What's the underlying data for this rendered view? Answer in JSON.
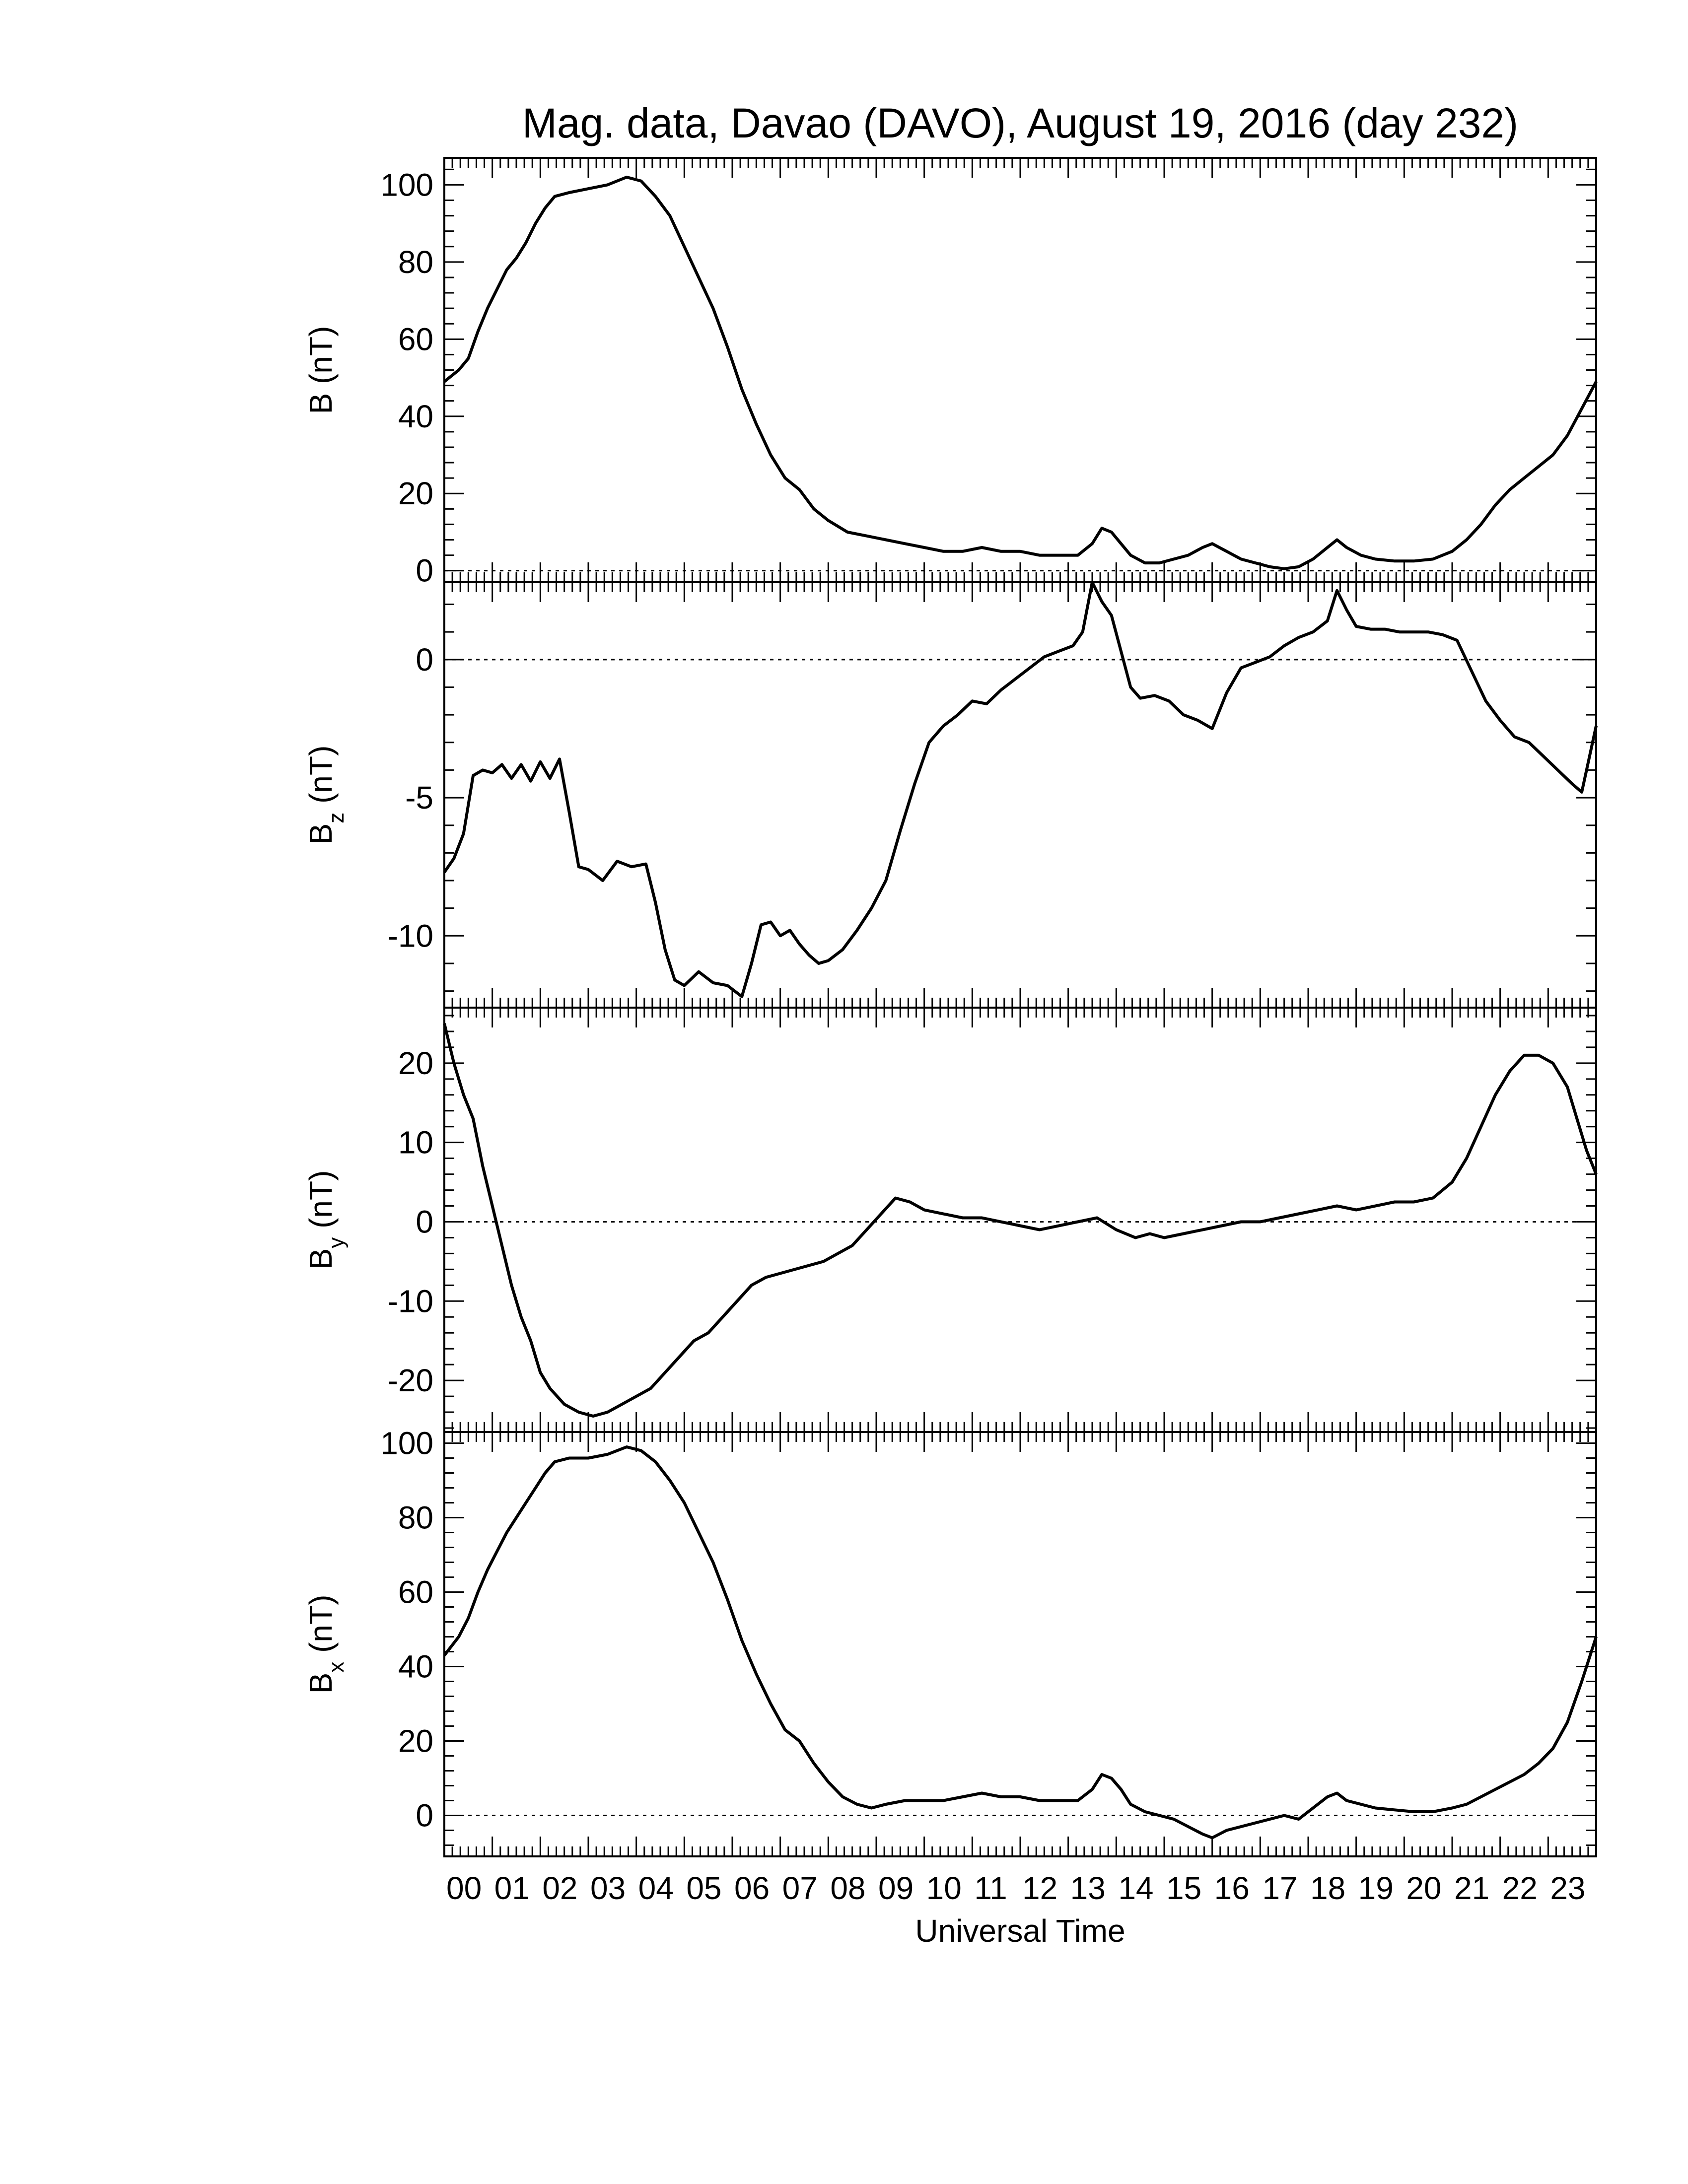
{
  "title": "Mag. data, Davao (DAVO), August 19, 2016 (day 232)",
  "xlabel": "Universal Time",
  "x_tick_labels": [
    "00",
    "01",
    "02",
    "03",
    "04",
    "05",
    "06",
    "07",
    "08",
    "09",
    "10",
    "11",
    "12",
    "13",
    "14",
    "15",
    "16",
    "17",
    "18",
    "19",
    "20",
    "21",
    "22",
    "23"
  ],
  "chart_data": [
    {
      "type": "line",
      "id": "B",
      "ylabel": "B (nT)",
      "ylabel_main": "B",
      "ylabel_sub": "",
      "ylabel_unit": " (nT)",
      "xlim": [
        0,
        24
      ],
      "ylim": [
        -3,
        107
      ],
      "yticks": [
        0,
        20,
        40,
        60,
        80,
        100
      ],
      "zero_line": true,
      "x": [
        0,
        0.3,
        0.5,
        0.7,
        0.9,
        1.1,
        1.3,
        1.5,
        1.7,
        1.9,
        2.1,
        2.3,
        2.6,
        3.0,
        3.4,
        3.8,
        4.1,
        4.4,
        4.7,
        5.0,
        5.3,
        5.6,
        5.9,
        6.2,
        6.5,
        6.8,
        7.1,
        7.4,
        7.7,
        8.0,
        8.4,
        8.8,
        9.2,
        9.6,
        10.0,
        10.4,
        10.8,
        11.2,
        11.6,
        12.0,
        12.4,
        12.8,
        13.2,
        13.5,
        13.7,
        13.9,
        14.1,
        14.3,
        14.6,
        14.9,
        15.2,
        15.5,
        15.8,
        16.0,
        16.3,
        16.6,
        16.9,
        17.2,
        17.5,
        17.8,
        18.1,
        18.4,
        18.6,
        18.8,
        19.1,
        19.4,
        19.8,
        20.2,
        20.6,
        21.0,
        21.3,
        21.6,
        21.9,
        22.2,
        22.5,
        22.8,
        23.1,
        23.4,
        23.7,
        24.0
      ],
      "y": [
        49,
        52,
        55,
        62,
        68,
        73,
        78,
        81,
        85,
        90,
        94,
        97,
        98,
        99,
        100,
        102,
        101,
        97,
        92,
        84,
        76,
        68,
        58,
        47,
        38,
        30,
        24,
        21,
        16,
        13,
        10,
        9,
        8,
        7,
        6,
        5,
        5,
        6,
        5,
        5,
        4,
        4,
        4,
        7,
        11,
        10,
        7,
        4,
        2,
        2,
        3,
        4,
        6,
        7,
        5,
        3,
        2,
        1,
        0.5,
        1,
        3,
        6,
        8,
        6,
        4,
        3,
        2.5,
        2.5,
        3,
        5,
        8,
        12,
        17,
        21,
        24,
        27,
        30,
        35,
        42,
        49
      ]
    },
    {
      "type": "line",
      "id": "Bz",
      "ylabel": "Bz (nT)",
      "ylabel_main": "B",
      "ylabel_sub": "z",
      "ylabel_unit": " (nT)",
      "xlim": [
        0,
        24
      ],
      "ylim": [
        -12.6,
        2.8
      ],
      "yticks": [
        -10,
        -5,
        0
      ],
      "zero_line": true,
      "x": [
        0,
        0.2,
        0.4,
        0.6,
        0.8,
        1.0,
        1.2,
        1.4,
        1.6,
        1.8,
        2.0,
        2.2,
        2.4,
        2.6,
        2.8,
        3.0,
        3.3,
        3.6,
        3.9,
        4.2,
        4.4,
        4.6,
        4.8,
        5.0,
        5.3,
        5.6,
        5.9,
        6.2,
        6.4,
        6.6,
        6.8,
        7.0,
        7.2,
        7.4,
        7.6,
        7.8,
        8.0,
        8.3,
        8.6,
        8.9,
        9.2,
        9.5,
        9.8,
        10.1,
        10.4,
        10.7,
        11.0,
        11.3,
        11.6,
        11.9,
        12.2,
        12.5,
        12.8,
        13.1,
        13.3,
        13.5,
        13.7,
        13.9,
        14.1,
        14.3,
        14.5,
        14.8,
        15.1,
        15.4,
        15.7,
        16.0,
        16.3,
        16.6,
        16.9,
        17.2,
        17.5,
        17.8,
        18.1,
        18.4,
        18.6,
        18.8,
        19.0,
        19.3,
        19.6,
        19.9,
        20.2,
        20.5,
        20.8,
        21.1,
        21.4,
        21.7,
        22.0,
        22.3,
        22.6,
        22.9,
        23.2,
        23.5,
        23.7,
        24.0
      ],
      "y": [
        -7.7,
        -7.2,
        -6.3,
        -4.2,
        -4.0,
        -4.1,
        -3.8,
        -4.3,
        -3.8,
        -4.4,
        -3.7,
        -4.3,
        -3.6,
        -5.5,
        -7.5,
        -7.6,
        -8.0,
        -7.3,
        -7.5,
        -7.4,
        -8.8,
        -10.5,
        -11.6,
        -11.8,
        -11.3,
        -11.7,
        -11.8,
        -12.2,
        -11.0,
        -9.6,
        -9.5,
        -10.0,
        -9.8,
        -10.3,
        -10.7,
        -11.0,
        -10.9,
        -10.5,
        -9.8,
        -9.0,
        -8.0,
        -6.2,
        -4.5,
        -3.0,
        -2.4,
        -2.0,
        -1.5,
        -1.6,
        -1.1,
        -0.7,
        -0.3,
        0.1,
        0.3,
        0.5,
        1.0,
        2.8,
        2.1,
        1.6,
        0.3,
        -1.0,
        -1.4,
        -1.3,
        -1.5,
        -2.0,
        -2.2,
        -2.5,
        -1.2,
        -0.3,
        -0.1,
        0.1,
        0.5,
        0.8,
        1.0,
        1.4,
        2.5,
        1.8,
        1.2,
        1.1,
        1.1,
        1.0,
        1.0,
        1.0,
        0.9,
        0.7,
        -0.4,
        -1.5,
        -2.2,
        -2.8,
        -3.0,
        -3.5,
        -4.0,
        -4.5,
        -4.8,
        -2.4
      ]
    },
    {
      "type": "line",
      "id": "By",
      "ylabel": "By (nT)",
      "ylabel_main": "B",
      "ylabel_sub": "y",
      "ylabel_unit": " (nT)",
      "xlim": [
        0,
        24
      ],
      "ylim": [
        -26.5,
        27
      ],
      "yticks": [
        -20,
        -10,
        0,
        10,
        20
      ],
      "zero_line": true,
      "x": [
        0,
        0.2,
        0.4,
        0.6,
        0.8,
        1.0,
        1.2,
        1.4,
        1.6,
        1.8,
        2.0,
        2.2,
        2.5,
        2.8,
        3.1,
        3.4,
        3.7,
        4.0,
        4.3,
        4.6,
        4.9,
        5.2,
        5.5,
        5.8,
        6.1,
        6.4,
        6.7,
        7.0,
        7.3,
        7.6,
        7.9,
        8.2,
        8.5,
        8.8,
        9.1,
        9.4,
        9.7,
        10.0,
        10.4,
        10.8,
        11.2,
        11.6,
        12.0,
        12.4,
        12.8,
        13.2,
        13.6,
        14.0,
        14.4,
        14.7,
        15.0,
        15.4,
        15.8,
        16.2,
        16.6,
        17.0,
        17.4,
        17.8,
        18.2,
        18.6,
        19.0,
        19.4,
        19.8,
        20.2,
        20.6,
        21.0,
        21.3,
        21.6,
        21.9,
        22.2,
        22.5,
        22.8,
        23.1,
        23.4,
        23.6,
        23.8,
        24.0
      ],
      "y": [
        25,
        20,
        16,
        13,
        7,
        2,
        -3,
        -8,
        -12,
        -15,
        -19,
        -21,
        -23,
        -24,
        -24.5,
        -24,
        -23,
        -22,
        -21,
        -19,
        -17,
        -15,
        -14,
        -12,
        -10,
        -8,
        -7,
        -6.5,
        -6,
        -5.5,
        -5,
        -4,
        -3,
        -1,
        1,
        3,
        2.5,
        1.5,
        1,
        0.5,
        0.5,
        0,
        -0.5,
        -1,
        -0.5,
        0,
        0.5,
        -1,
        -2,
        -1.5,
        -2,
        -1.5,
        -1,
        -0.5,
        0,
        0,
        0.5,
        1,
        1.5,
        2,
        1.5,
        2,
        2.5,
        2.5,
        3,
        5,
        8,
        12,
        16,
        19,
        21,
        21,
        20,
        17,
        13,
        9,
        6
      ]
    },
    {
      "type": "line",
      "id": "Bx",
      "ylabel": "Bx (nT)",
      "ylabel_main": "B",
      "ylabel_sub": "x",
      "ylabel_unit": " (nT)",
      "xlim": [
        0,
        24
      ],
      "ylim": [
        -11,
        103
      ],
      "yticks": [
        0,
        20,
        40,
        60,
        80,
        100
      ],
      "zero_line": true,
      "x": [
        0,
        0.3,
        0.5,
        0.7,
        0.9,
        1.1,
        1.3,
        1.5,
        1.7,
        1.9,
        2.1,
        2.3,
        2.6,
        3.0,
        3.4,
        3.8,
        4.1,
        4.4,
        4.7,
        5.0,
        5.3,
        5.6,
        5.9,
        6.2,
        6.5,
        6.8,
        7.1,
        7.4,
        7.7,
        8.0,
        8.3,
        8.6,
        8.9,
        9.2,
        9.6,
        10.0,
        10.4,
        10.8,
        11.2,
        11.6,
        12.0,
        12.4,
        12.8,
        13.2,
        13.5,
        13.7,
        13.9,
        14.1,
        14.3,
        14.6,
        14.9,
        15.2,
        15.5,
        15.8,
        16.0,
        16.3,
        16.6,
        16.9,
        17.2,
        17.5,
        17.8,
        18.1,
        18.4,
        18.6,
        18.8,
        19.1,
        19.4,
        19.8,
        20.2,
        20.6,
        21.0,
        21.3,
        21.6,
        21.9,
        22.2,
        22.5,
        22.8,
        23.1,
        23.4,
        23.7,
        24.0
      ],
      "y": [
        43,
        48,
        53,
        60,
        66,
        71,
        76,
        80,
        84,
        88,
        92,
        95,
        96,
        96,
        97,
        99,
        98,
        95,
        90,
        84,
        76,
        68,
        58,
        47,
        38,
        30,
        23,
        20,
        14,
        9,
        5,
        3,
        2,
        3,
        4,
        4,
        4,
        5,
        6,
        5,
        5,
        4,
        4,
        4,
        7,
        11,
        10,
        7,
        3,
        1,
        0,
        -1,
        -3,
        -5,
        -6,
        -4,
        -3,
        -2,
        -1,
        0,
        -1,
        2,
        5,
        6,
        4,
        3,
        2,
        1.5,
        1,
        1,
        2,
        3,
        5,
        7,
        9,
        11,
        14,
        18,
        25,
        36,
        48
      ]
    }
  ]
}
